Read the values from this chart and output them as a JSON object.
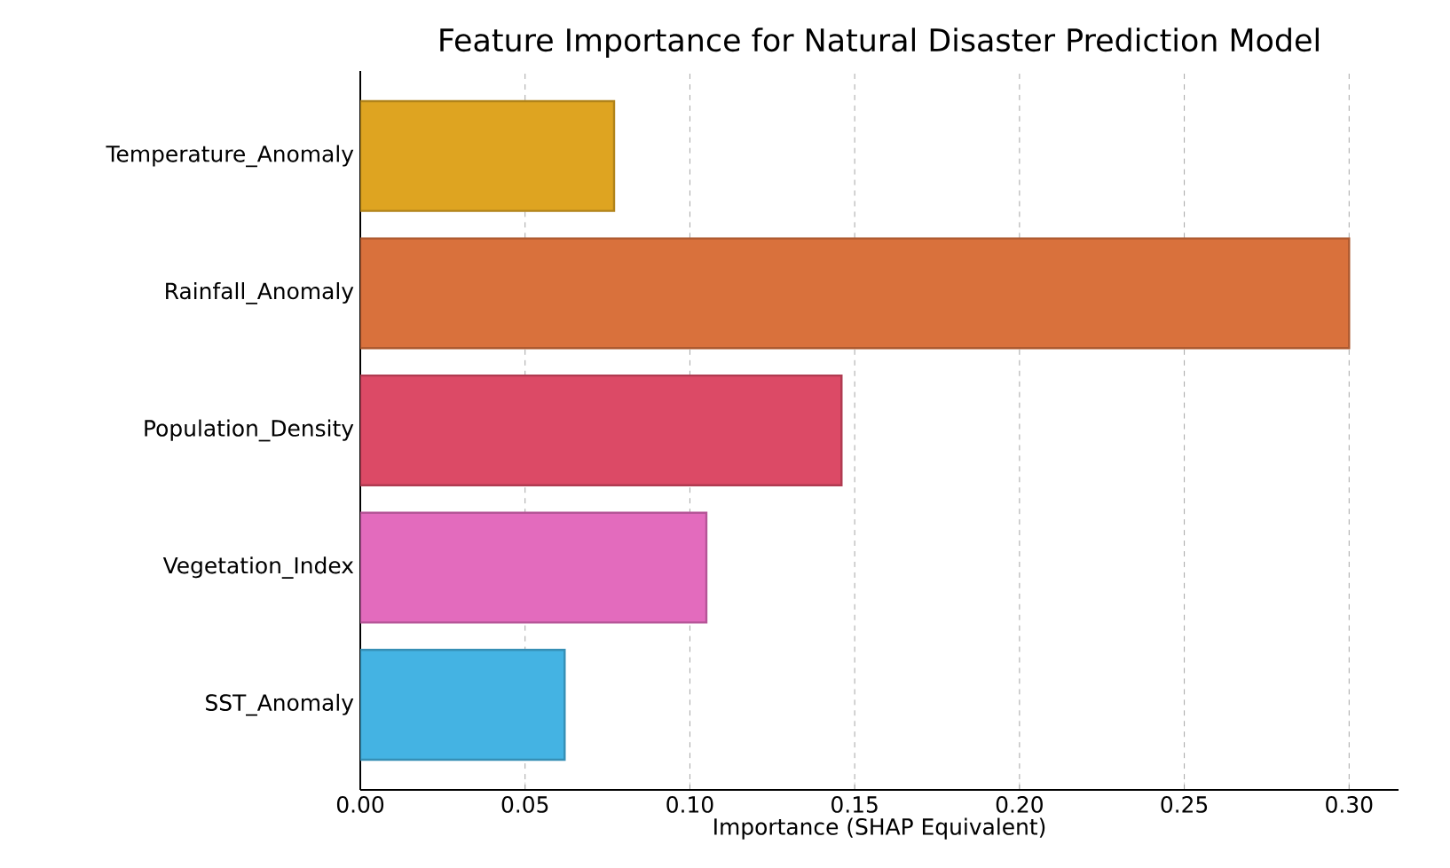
{
  "chart_data": {
    "type": "bar",
    "orientation": "horizontal",
    "title": "Feature Importance for Natural Disaster Prediction Model",
    "xlabel": "Importance (SHAP Equivalent)",
    "categories": [
      "Temperature_Anomaly",
      "Rainfall_Anomaly",
      "Population_Density",
      "Vegetation_Index",
      "SST_Anomaly"
    ],
    "values": [
      0.077,
      0.3,
      0.146,
      0.105,
      0.062
    ],
    "colors": [
      "#dea421",
      "#d9713c",
      "#dc4a66",
      "#e36bbd",
      "#44b3e3"
    ],
    "xlim": [
      0,
      0.315
    ],
    "xticks": [
      {
        "value": 0,
        "label": "0.00"
      },
      {
        "value": 0.05,
        "label": "0.05"
      },
      {
        "value": 0.1,
        "label": "0.10"
      },
      {
        "value": 0.15,
        "label": "0.15"
      },
      {
        "value": 0.2,
        "label": "0.20"
      },
      {
        "value": 0.25,
        "label": "0.25"
      },
      {
        "value": 0.3,
        "label": "0.30"
      }
    ],
    "grid": "x"
  }
}
